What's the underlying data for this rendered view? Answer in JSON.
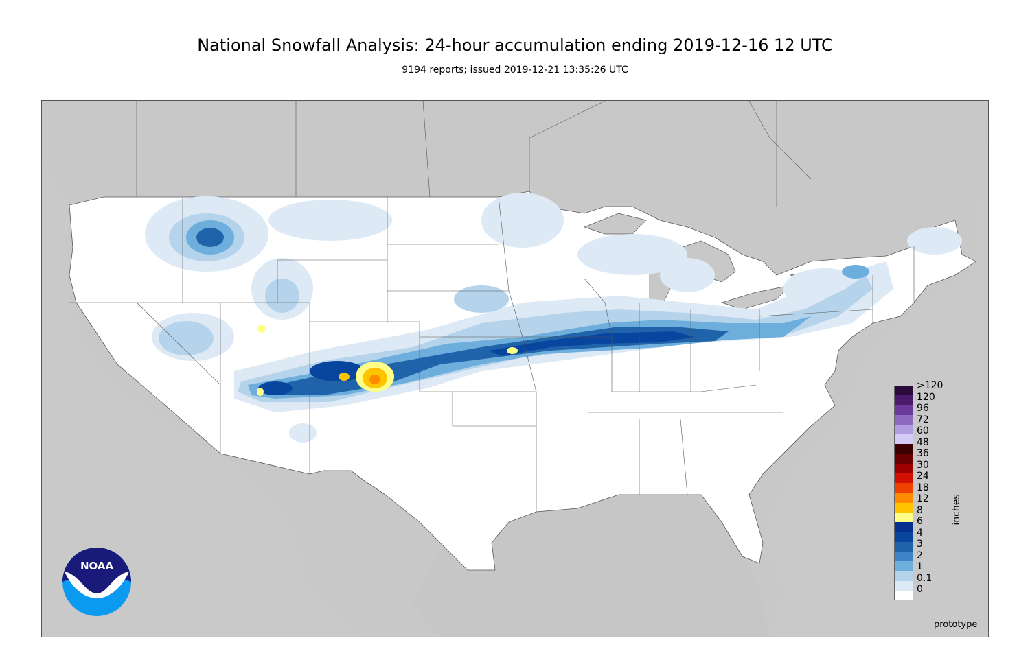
{
  "title": "National Snowfall Analysis: 24-hour accumulation ending 2019-12-16 12 UTC",
  "subtitle": "9194 reports; issued 2019-12-21 13:35:26 UTC",
  "legend": {
    "units": "inches",
    "items": [
      {
        "label": ">120",
        "color": "#2a0a3a"
      },
      {
        "label": "120",
        "color": "#4b1a6b"
      },
      {
        "label": "96",
        "color": "#6b3a9a"
      },
      {
        "label": "72",
        "color": "#8c6bc0"
      },
      {
        "label": "60",
        "color": "#b09ee0"
      },
      {
        "label": "48",
        "color": "#d4ccf6"
      },
      {
        "label": "36",
        "color": "#3b0000"
      },
      {
        "label": "30",
        "color": "#6b0000"
      },
      {
        "label": "24",
        "color": "#9e0000"
      },
      {
        "label": "18",
        "color": "#d21000"
      },
      {
        "label": "12",
        "color": "#f04000"
      },
      {
        "label": "8",
        "color": "#ff8c00"
      },
      {
        "label": "6",
        "color": "#ffc400"
      },
      {
        "label": "4",
        "color": "#ffff88"
      },
      {
        "label": "3",
        "color": "#08308e"
      },
      {
        "label": "2",
        "color": "#08459e"
      },
      {
        "label": "1",
        "color": "#1f63aa"
      },
      {
        "label": "0.1",
        "color": "#3d85c6"
      },
      {
        "label": "0",
        "color": "#6eaedc"
      }
    ],
    "bottom_colors": [
      "#b5d3ea",
      "#dde9f5",
      "#ffffff"
    ]
  },
  "footer": {
    "prototype": "prototype"
  },
  "logo": {
    "text": "NOAA"
  }
}
